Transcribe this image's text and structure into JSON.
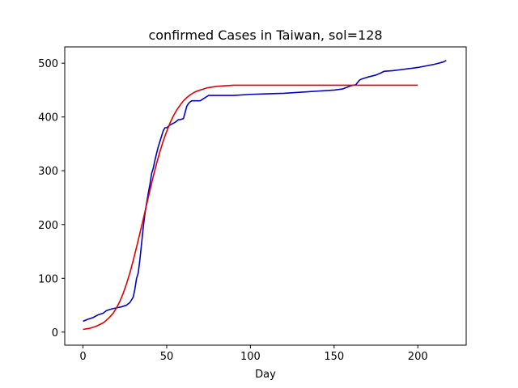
{
  "chart_data": {
    "type": "line",
    "title": "confirmed Cases in Taiwan, sol=128",
    "xlabel": "Day",
    "ylabel": "",
    "xlim": [
      -10.9,
      228.9
    ],
    "ylim": [
      -24.3,
      530.3
    ],
    "xticks": [
      0,
      50,
      100,
      150,
      200
    ],
    "yticks": [
      0,
      100,
      200,
      300,
      400,
      500
    ],
    "grid": false,
    "series": [
      {
        "color": "#0000cc",
        "x": [
          0,
          3,
          6,
          9,
          12,
          14,
          17,
          20,
          23,
          26,
          28,
          30,
          31,
          32,
          33,
          34,
          35,
          36,
          37,
          38,
          39,
          40,
          41,
          42,
          43,
          44,
          45,
          46,
          47,
          48,
          49,
          50,
          52,
          55,
          57,
          58,
          60,
          62,
          63,
          64,
          65,
          68,
          70,
          75,
          80,
          90,
          100,
          110,
          120,
          130,
          140,
          150,
          155,
          160,
          163,
          165,
          166,
          168,
          170,
          175,
          178,
          180,
          185,
          190,
          195,
          200,
          205,
          210,
          215,
          217
        ],
        "y": [
          20,
          24,
          27,
          32,
          35,
          40,
          43,
          45,
          47,
          50,
          55,
          65,
          80,
          100,
          110,
          135,
          165,
          195,
          220,
          240,
          258,
          275,
          295,
          305,
          320,
          333,
          345,
          355,
          365,
          375,
          380,
          380,
          385,
          390,
          395,
          395,
          397,
          420,
          425,
          428,
          430,
          430,
          430,
          440,
          440,
          440,
          442,
          443,
          444,
          446,
          448,
          450,
          452,
          458,
          460,
          468,
          470,
          472,
          474,
          478,
          482,
          485,
          486,
          488,
          490,
          492,
          495,
          498,
          502,
          505
        ]
      },
      {
        "color": "#e00000",
        "x": [
          0,
          2,
          4,
          6,
          8,
          10,
          12,
          14,
          16,
          18,
          20,
          22,
          24,
          26,
          28,
          30,
          32,
          34,
          36,
          38,
          40,
          42,
          44,
          46,
          48,
          50,
          52,
          54,
          56,
          58,
          60,
          62,
          64,
          66,
          68,
          70,
          72,
          74,
          76,
          78,
          80,
          85,
          90,
          95,
          100,
          110,
          120,
          130,
          140,
          150,
          160,
          170,
          180,
          190,
          200
        ],
        "y": [
          5,
          6,
          7,
          9,
          11,
          14,
          17,
          22,
          28,
          35,
          45,
          57,
          72,
          90,
          110,
          133,
          158,
          184,
          210,
          237,
          264,
          290,
          314,
          336,
          356,
          373,
          389,
          402,
          413,
          422,
          430,
          436,
          441,
          445,
          448,
          450,
          452,
          454,
          455,
          456,
          457,
          458,
          459,
          459,
          459,
          459,
          459,
          459,
          459,
          459,
          459,
          459,
          459,
          459,
          459
        ]
      }
    ]
  }
}
